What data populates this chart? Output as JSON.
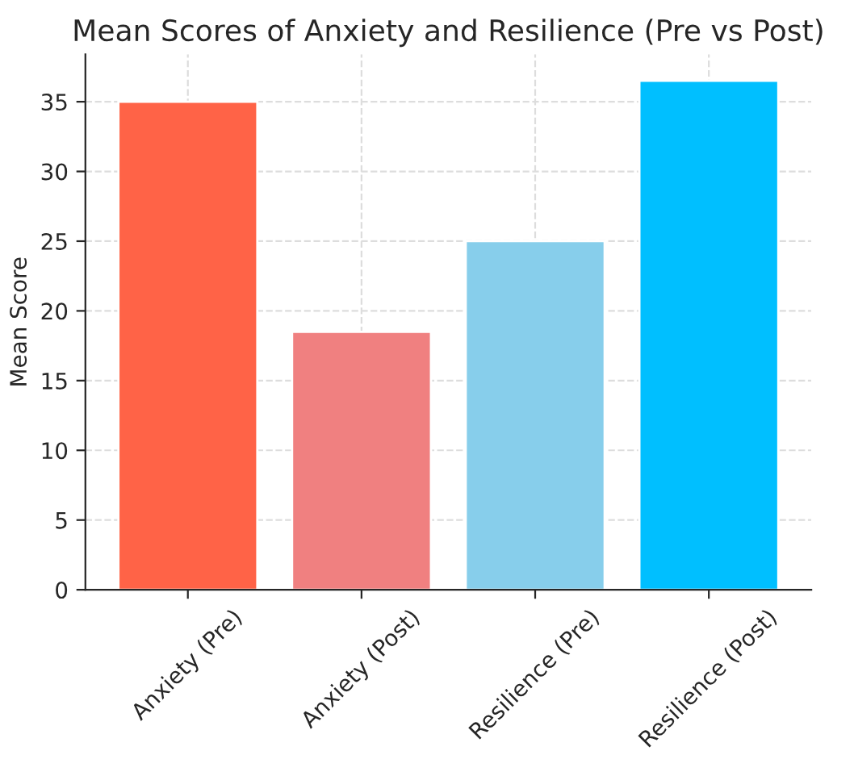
{
  "chart_data": {
    "type": "bar",
    "title": "Mean Scores of Anxiety and Resilience (Pre vs Post)",
    "ylabel": "Mean Score",
    "categories": [
      "Anxiety (Pre)",
      "Anxiety (Post)",
      "Resilience (Pre)",
      "Resilience (Post)"
    ],
    "values": [
      35,
      18.5,
      25,
      36.5
    ],
    "colors": [
      "#ff6347",
      "#f08080",
      "#87ceeb",
      "#00bfff"
    ],
    "ylim": [
      0,
      38.4
    ],
    "yticks": [
      0,
      5,
      10,
      15,
      20,
      25,
      30,
      35
    ],
    "grid": true
  }
}
